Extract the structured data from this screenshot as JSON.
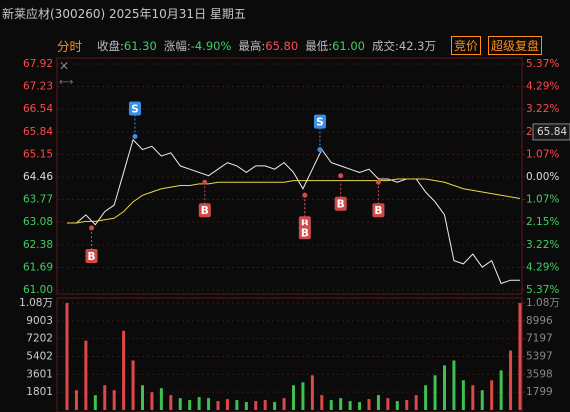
{
  "header": {
    "title": "新莱应材(300260) 2025年10月31日 星期五",
    "tab": "分时",
    "stats": [
      {
        "label": "收盘:",
        "value": "61.30"
      },
      {
        "label": "涨幅:",
        "value": "-4.90%"
      },
      {
        "label": "最高:",
        "value": "65.80"
      },
      {
        "label": "最低:",
        "value": "61.00"
      },
      {
        "label": "成交:",
        "value": "42.3万"
      }
    ],
    "buttons": [
      "竞价",
      "超级复盘"
    ]
  },
  "chart_data": [
    {
      "type": "line",
      "x": [
        0,
        5,
        10,
        15,
        20,
        25,
        30,
        35,
        40,
        45,
        50,
        55,
        60,
        65,
        70,
        75,
        80,
        85,
        90,
        95,
        100,
        105,
        110,
        115,
        120,
        125,
        130,
        135,
        140,
        145,
        150,
        155,
        160,
        165,
        170,
        175,
        180,
        185,
        190,
        195,
        200,
        205,
        210,
        215,
        220,
        225,
        230,
        235,
        240
      ],
      "xlim": [
        0,
        240
      ],
      "series": [
        {
          "color": "#f0f0f0",
          "values": [
            63.05,
            63.05,
            63.3,
            63.0,
            63.4,
            63.6,
            64.6,
            65.6,
            65.3,
            65.4,
            65.1,
            65.2,
            64.8,
            64.7,
            64.6,
            64.5,
            64.7,
            64.9,
            64.8,
            64.6,
            64.8,
            64.8,
            64.7,
            64.9,
            64.6,
            64.1,
            64.7,
            65.3,
            64.9,
            64.8,
            64.7,
            64.6,
            64.7,
            64.4,
            64.4,
            64.3,
            64.4,
            64.4,
            64.0,
            63.7,
            63.3,
            61.9,
            61.8,
            62.1,
            61.7,
            61.9,
            61.2,
            61.3,
            61.3
          ]
        },
        {
          "color": "#e8d84a",
          "values": [
            63.05,
            63.05,
            63.1,
            63.1,
            63.15,
            63.2,
            63.4,
            63.7,
            63.9,
            64.0,
            64.1,
            64.15,
            64.2,
            64.2,
            64.25,
            64.25,
            64.3,
            64.3,
            64.3,
            64.3,
            64.3,
            64.3,
            64.3,
            64.3,
            64.35,
            64.35,
            64.35,
            64.35,
            64.35,
            64.35,
            64.35,
            64.35,
            64.35,
            64.35,
            64.35,
            64.4,
            64.4,
            64.4,
            64.4,
            64.35,
            64.3,
            64.2,
            64.1,
            64.05,
            64.0,
            63.95,
            63.9,
            63.85,
            63.8
          ]
        }
      ],
      "ylim": [
        61.0,
        67.92
      ],
      "yticks": [
        67.92,
        67.23,
        66.54,
        65.84,
        65.15,
        64.46,
        63.77,
        63.08,
        62.38,
        61.69,
        {
          "value": 61.0,
          "label": "61.00"
        }
      ],
      "y2lim": [
        -5.37,
        5.37
      ],
      "y2ticks": [
        {
          "value": 5.37,
          "label": "5.37%"
        },
        {
          "value": 4.29,
          "label": "4.29%"
        },
        {
          "value": 3.22,
          "label": "3.22%"
        },
        {
          "value": 2.15,
          "label": "2.15%"
        },
        {
          "value": 1.07,
          "label": "1.07%"
        },
        {
          "value": 0,
          "label": "0.00%"
        },
        {
          "value": -1.07,
          "label": "1.07%"
        },
        {
          "value": -2.15,
          "label": "2.15%"
        },
        {
          "value": -3.22,
          "label": "3.22%"
        },
        {
          "value": -4.29,
          "label": "4.29%"
        },
        {
          "value": -5.37,
          "label": "5.37%"
        }
      ],
      "cursor_value": 65.84,
      "trade_marks": [
        {
          "label": "S",
          "x": 36,
          "value": 65.7
        },
        {
          "label": "S",
          "x": 134,
          "value": 65.3
        },
        {
          "label": "B",
          "x": 13,
          "value": 62.9
        },
        {
          "label": "B",
          "x": 73,
          "value": 64.3
        },
        {
          "label": "B",
          "x": 126,
          "value": 63.9
        },
        {
          "label": "B",
          "x": 126,
          "value": 63.9
        },
        {
          "label": "B",
          "x": 145,
          "value": 64.5
        },
        {
          "label": "B",
          "x": 165,
          "value": 64.3
        }
      ],
      "grid": true
    },
    {
      "type": "bar",
      "values": [
        10800,
        2000,
        7000,
        1500,
        2500,
        2000,
        8000,
        5000,
        2500,
        1800,
        2200,
        1500,
        1200,
        1000,
        1300,
        1200,
        900,
        1100,
        1000,
        800,
        900,
        1000,
        800,
        1200,
        2500,
        2800,
        3500,
        1500,
        1000,
        1200,
        900,
        800,
        1100,
        1500,
        1200,
        900,
        1000,
        1500,
        2500,
        3500,
        4500,
        5000,
        3000,
        2500,
        2000,
        3000,
        4000,
        6000,
        10800
      ],
      "ylim": [
        0,
        10804
      ],
      "yticks": [
        {
          "value": 10804,
          "label": "1.08万"
        },
        9003,
        7202,
        5402,
        3601,
        1801
      ],
      "y2lim": [
        0,
        10795
      ],
      "y2ticks": [
        {
          "value": 10795,
          "label": "1.08万"
        },
        8996,
        7197,
        5397,
        3598,
        1799
      ],
      "grid": true
    }
  ]
}
